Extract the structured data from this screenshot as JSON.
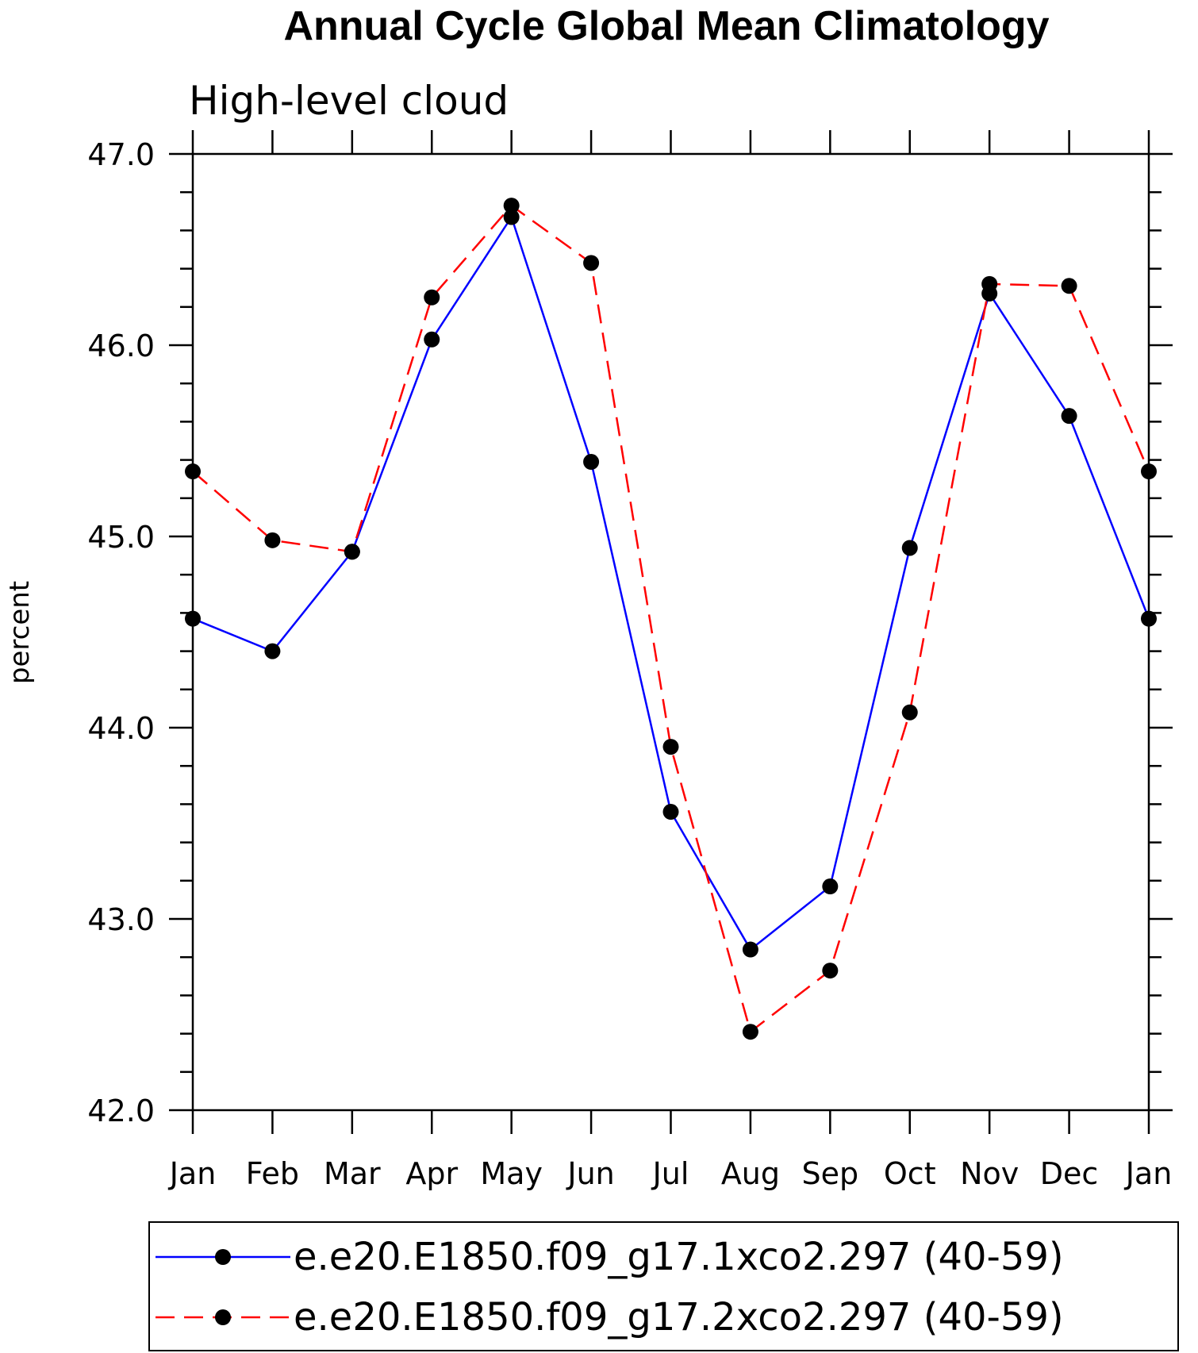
{
  "chart_data": {
    "type": "line",
    "title": "Annual Cycle Global Mean Climatology",
    "subtitle": "High-level cloud",
    "xlabel": "",
    "ylabel": "percent",
    "categories": [
      "Jan",
      "Feb",
      "Mar",
      "Apr",
      "May",
      "Jun",
      "Jul",
      "Aug",
      "Sep",
      "Oct",
      "Nov",
      "Dec",
      "Jan"
    ],
    "ylim": [
      42.0,
      47.0
    ],
    "yticks": [
      "42.0",
      "43.0",
      "44.0",
      "45.0",
      "46.0",
      "47.0"
    ],
    "grid": false,
    "legend_position": "bottom",
    "series": [
      {
        "name": "e.e20.E1850.f09_g17.1xco2.297 (40-59)",
        "color": "#0000ff",
        "dash": "solid",
        "marker": "filled-circle",
        "values": [
          44.57,
          44.4,
          44.92,
          46.03,
          46.67,
          45.39,
          43.56,
          42.84,
          43.17,
          44.94,
          46.27,
          45.63,
          44.57
        ]
      },
      {
        "name": "e.e20.E1850.f09_g17.2xco2.297 (40-59)",
        "color": "#ff0000",
        "dash": "dashed",
        "marker": "filled-circle",
        "values": [
          45.34,
          44.98,
          44.92,
          46.25,
          46.73,
          46.43,
          43.9,
          42.41,
          42.73,
          44.08,
          46.32,
          46.31,
          45.34
        ]
      }
    ]
  }
}
